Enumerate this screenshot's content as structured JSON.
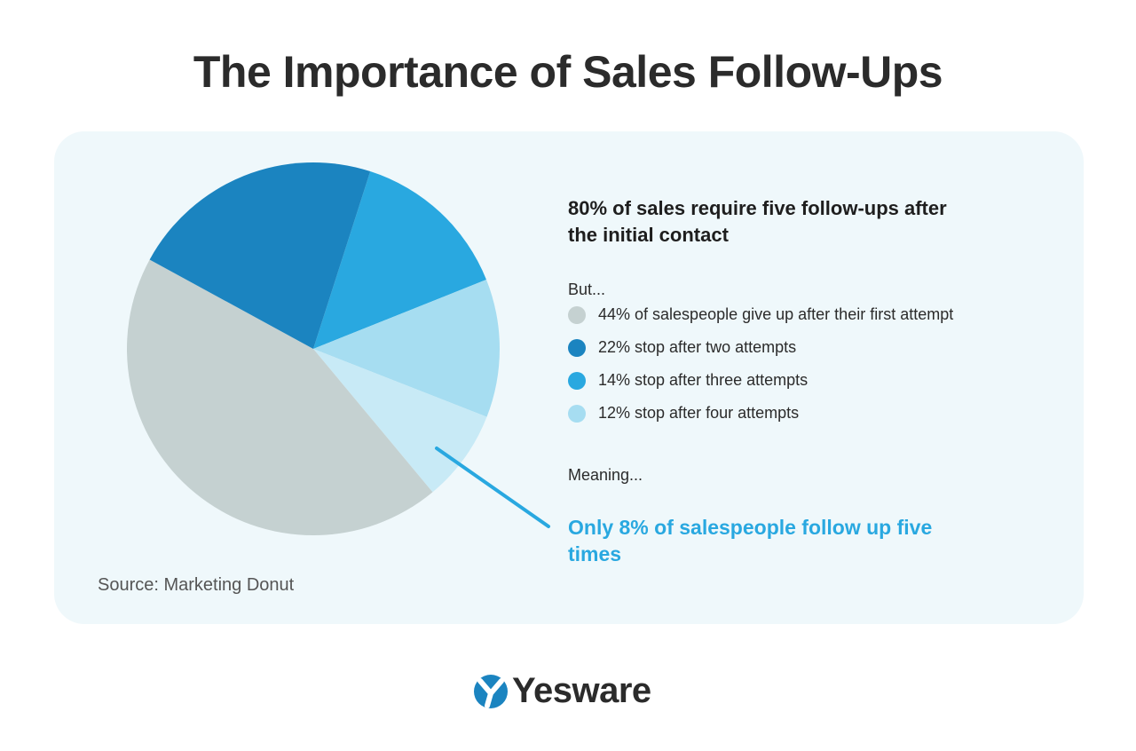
{
  "title": "The Importance of Sales Follow-Ups",
  "headline": "80% of sales require five follow-ups after the initial contact",
  "but_label": "But...",
  "meaning_label": "Meaning...",
  "callout": "Only 8% of salespeople follow up five times",
  "source": "Source: Marketing Donut",
  "logo": "Yesware",
  "colors": {
    "accent": "#29a8e0",
    "background": "#eff8fb"
  },
  "chart_data": {
    "type": "pie",
    "slices": [
      {
        "value": 14,
        "color": "#29a8e0"
      },
      {
        "value": 12,
        "color": "#a6ddf1"
      },
      {
        "value": 8,
        "color": "#c8eaf6"
      },
      {
        "value": 44,
        "color": "#c5d1d1"
      },
      {
        "value": 22,
        "color": "#1b84c0"
      }
    ],
    "legend": [
      {
        "label": "44% of salespeople give up after their first attempt",
        "color": "#c5d1d1"
      },
      {
        "label": "22% stop after two attempts",
        "color": "#1b84c0"
      },
      {
        "label": "14% stop after three attempts",
        "color": "#29a8e0"
      },
      {
        "label": "12% stop after four attempts",
        "color": "#a6ddf1"
      }
    ],
    "legend_placement": "right"
  }
}
